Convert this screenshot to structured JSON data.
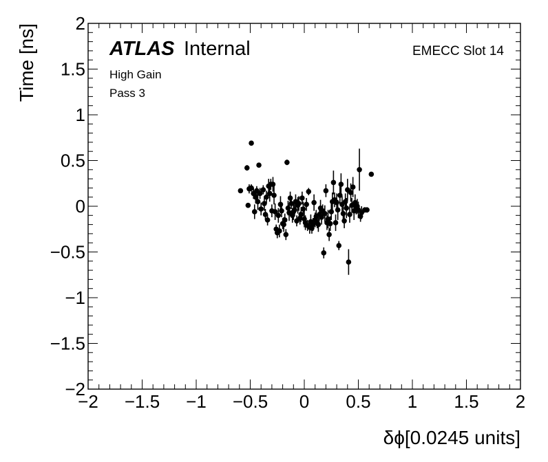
{
  "chart_data": {
    "type": "scatter",
    "title": "",
    "xlabel": "δϕ[0.0245 units]",
    "ylabel": "Time [ns]",
    "xlim": [
      -2,
      2
    ],
    "ylim": [
      -2,
      2
    ],
    "x_ticks": [
      "−2",
      "−1.5",
      "−1",
      "−0.5",
      "0",
      "0.5",
      "1",
      "1.5",
      "2"
    ],
    "y_ticks": [
      "−2",
      "−1.5",
      "−1",
      "−0.5",
      "0",
      "0.5",
      "1",
      "1.5",
      "2"
    ],
    "x_tick_values": [
      -2,
      -1.5,
      -1,
      -0.5,
      0,
      0.5,
      1,
      1.5,
      2
    ],
    "y_tick_values": [
      -2,
      -1.5,
      -1,
      -0.5,
      0,
      0.5,
      1,
      1.5,
      2
    ],
    "grid": false,
    "marker_color": "#000000",
    "annotations": {
      "atlas_bold": "ATLAS",
      "atlas_rest": "Internal",
      "line1": "High Gain",
      "line2": "Pass 3",
      "top_right": "EMECC Slot 14"
    },
    "points": [
      {
        "x": -0.59,
        "y": 0.17,
        "err": 0.02
      },
      {
        "x": -0.53,
        "y": 0.42,
        "err": 0.03
      },
      {
        "x": -0.52,
        "y": 0.01,
        "err": 0.02
      },
      {
        "x": -0.51,
        "y": 0.19,
        "err": 0.05
      },
      {
        "x": -0.49,
        "y": 0.69,
        "err": 0.02
      },
      {
        "x": -0.49,
        "y": 0.2,
        "err": 0.04
      },
      {
        "x": -0.47,
        "y": 0.14,
        "err": 0.06
      },
      {
        "x": -0.46,
        "y": -0.06,
        "err": 0.08
      },
      {
        "x": -0.45,
        "y": 0.1,
        "err": 0.07
      },
      {
        "x": -0.44,
        "y": 0.17,
        "err": 0.05
      },
      {
        "x": -0.43,
        "y": 0.05,
        "err": 0.09
      },
      {
        "x": -0.42,
        "y": 0.45,
        "err": 0.02
      },
      {
        "x": -0.41,
        "y": 0.14,
        "err": 0.06
      },
      {
        "x": -0.4,
        "y": -0.03,
        "err": 0.07
      },
      {
        "x": -0.38,
        "y": 0.18,
        "err": 0.05
      },
      {
        "x": -0.37,
        "y": 0.03,
        "err": 0.08
      },
      {
        "x": -0.36,
        "y": -0.09,
        "err": 0.06
      },
      {
        "x": -0.35,
        "y": 0.1,
        "err": 0.07
      },
      {
        "x": -0.34,
        "y": -0.15,
        "err": 0.06
      },
      {
        "x": -0.33,
        "y": 0.22,
        "err": 0.08
      },
      {
        "x": -0.32,
        "y": 0.14,
        "err": 0.09
      },
      {
        "x": -0.31,
        "y": 0.24,
        "err": 0.06
      },
      {
        "x": -0.3,
        "y": -0.05,
        "err": 0.07
      },
      {
        "x": -0.29,
        "y": 0.24,
        "err": 0.08
      },
      {
        "x": -0.28,
        "y": 0.12,
        "err": 0.1
      },
      {
        "x": -0.27,
        "y": -0.06,
        "err": 0.09
      },
      {
        "x": -0.26,
        "y": -0.25,
        "err": 0.05
      },
      {
        "x": -0.25,
        "y": -0.29,
        "err": 0.06
      },
      {
        "x": -0.24,
        "y": -0.1,
        "err": 0.08
      },
      {
        "x": -0.23,
        "y": -0.27,
        "err": 0.07
      },
      {
        "x": -0.22,
        "y": 0.02,
        "err": 0.09
      },
      {
        "x": -0.21,
        "y": -0.05,
        "err": 0.07
      },
      {
        "x": -0.2,
        "y": -0.19,
        "err": 0.06
      },
      {
        "x": -0.19,
        "y": -0.2,
        "err": 0.08
      },
      {
        "x": -0.18,
        "y": -0.15,
        "err": 0.07
      },
      {
        "x": -0.17,
        "y": -0.31,
        "err": 0.06
      },
      {
        "x": -0.16,
        "y": 0.48,
        "err": 0.03
      },
      {
        "x": -0.15,
        "y": -0.02,
        "err": 0.08
      },
      {
        "x": -0.14,
        "y": -0.07,
        "err": 0.09
      },
      {
        "x": -0.13,
        "y": 0.09,
        "err": 0.07
      },
      {
        "x": -0.12,
        "y": 0.03,
        "err": 0.06
      },
      {
        "x": -0.11,
        "y": -0.1,
        "err": 0.08
      },
      {
        "x": -0.1,
        "y": -0.06,
        "err": 0.09
      },
      {
        "x": -0.09,
        "y": -0.04,
        "err": 0.07
      },
      {
        "x": -0.08,
        "y": 0.05,
        "err": 0.08
      },
      {
        "x": -0.07,
        "y": -0.16,
        "err": 0.06
      },
      {
        "x": -0.06,
        "y": 0.01,
        "err": 0.09
      },
      {
        "x": -0.05,
        "y": 0.03,
        "err": 0.08
      },
      {
        "x": -0.04,
        "y": -0.13,
        "err": 0.07
      },
      {
        "x": -0.03,
        "y": -0.09,
        "err": 0.08
      },
      {
        "x": -0.02,
        "y": 0.09,
        "err": 0.07
      },
      {
        "x": -0.01,
        "y": -0.03,
        "err": 0.08
      },
      {
        "x": 0.0,
        "y": -0.14,
        "err": 0.09
      },
      {
        "x": 0.01,
        "y": -0.18,
        "err": 0.08
      },
      {
        "x": 0.02,
        "y": 0.02,
        "err": 0.07
      },
      {
        "x": 0.03,
        "y": -0.21,
        "err": 0.06
      },
      {
        "x": 0.04,
        "y": 0.16,
        "err": 0.04
      },
      {
        "x": 0.05,
        "y": -0.23,
        "err": 0.07
      },
      {
        "x": 0.06,
        "y": -0.17,
        "err": 0.08
      },
      {
        "x": 0.07,
        "y": -0.24,
        "err": 0.06
      },
      {
        "x": 0.08,
        "y": -0.2,
        "err": 0.07
      },
      {
        "x": 0.09,
        "y": 0.04,
        "err": 0.09
      },
      {
        "x": 0.1,
        "y": -0.15,
        "err": 0.08
      },
      {
        "x": 0.11,
        "y": -0.11,
        "err": 0.07
      },
      {
        "x": 0.12,
        "y": -0.18,
        "err": 0.06
      },
      {
        "x": 0.13,
        "y": -0.2,
        "err": 0.08
      },
      {
        "x": 0.14,
        "y": -0.09,
        "err": 0.07
      },
      {
        "x": 0.15,
        "y": -0.02,
        "err": 0.09
      },
      {
        "x": 0.16,
        "y": -0.12,
        "err": 0.08
      },
      {
        "x": 0.17,
        "y": -0.05,
        "err": 0.07
      },
      {
        "x": 0.18,
        "y": -0.51,
        "err": 0.06
      },
      {
        "x": 0.19,
        "y": -0.08,
        "err": 0.09
      },
      {
        "x": 0.2,
        "y": 0.17,
        "err": 0.07
      },
      {
        "x": 0.21,
        "y": -0.18,
        "err": 0.08
      },
      {
        "x": 0.22,
        "y": -0.14,
        "err": 0.1
      },
      {
        "x": 0.23,
        "y": -0.31,
        "err": 0.07
      },
      {
        "x": 0.24,
        "y": -0.19,
        "err": 0.08
      },
      {
        "x": 0.25,
        "y": -0.06,
        "err": 0.09
      },
      {
        "x": 0.26,
        "y": 0.05,
        "err": 0.1
      },
      {
        "x": 0.27,
        "y": 0.26,
        "err": 0.13
      },
      {
        "x": 0.28,
        "y": 0.07,
        "err": 0.08
      },
      {
        "x": 0.29,
        "y": -0.18,
        "err": 0.09
      },
      {
        "x": 0.3,
        "y": 0.04,
        "err": 0.1
      },
      {
        "x": 0.31,
        "y": -0.04,
        "err": 0.11
      },
      {
        "x": 0.32,
        "y": -0.43,
        "err": 0.05
      },
      {
        "x": 0.33,
        "y": 0.12,
        "err": 0.1
      },
      {
        "x": 0.34,
        "y": 0.24,
        "err": 0.12
      },
      {
        "x": 0.35,
        "y": 0.02,
        "err": 0.09
      },
      {
        "x": 0.36,
        "y": -0.08,
        "err": 0.1
      },
      {
        "x": 0.37,
        "y": -0.16,
        "err": 0.08
      },
      {
        "x": 0.38,
        "y": 0.05,
        "err": 0.09
      },
      {
        "x": 0.39,
        "y": -0.02,
        "err": 0.11
      },
      {
        "x": 0.4,
        "y": 0.18,
        "err": 0.12
      },
      {
        "x": 0.41,
        "y": -0.61,
        "err": 0.14
      },
      {
        "x": 0.42,
        "y": -0.09,
        "err": 0.09
      },
      {
        "x": 0.43,
        "y": 0.15,
        "err": 0.1
      },
      {
        "x": 0.44,
        "y": 0.01,
        "err": 0.08
      },
      {
        "x": 0.45,
        "y": 0.21,
        "err": 0.11
      },
      {
        "x": 0.46,
        "y": -0.05,
        "err": 0.1
      },
      {
        "x": 0.47,
        "y": 0.04,
        "err": 0.09
      },
      {
        "x": 0.48,
        "y": -0.02,
        "err": 0.07
      },
      {
        "x": 0.49,
        "y": 0.0,
        "err": 0.08
      },
      {
        "x": 0.5,
        "y": -0.04,
        "err": 0.09
      },
      {
        "x": 0.51,
        "y": 0.4,
        "err": 0.23
      },
      {
        "x": 0.52,
        "y": -0.11,
        "err": 0.06
      },
      {
        "x": 0.53,
        "y": -0.07,
        "err": 0.07
      },
      {
        "x": 0.56,
        "y": -0.04,
        "err": 0.03
      },
      {
        "x": 0.58,
        "y": -0.04,
        "err": 0.03
      },
      {
        "x": 0.62,
        "y": 0.35,
        "err": 0.02
      }
    ]
  }
}
